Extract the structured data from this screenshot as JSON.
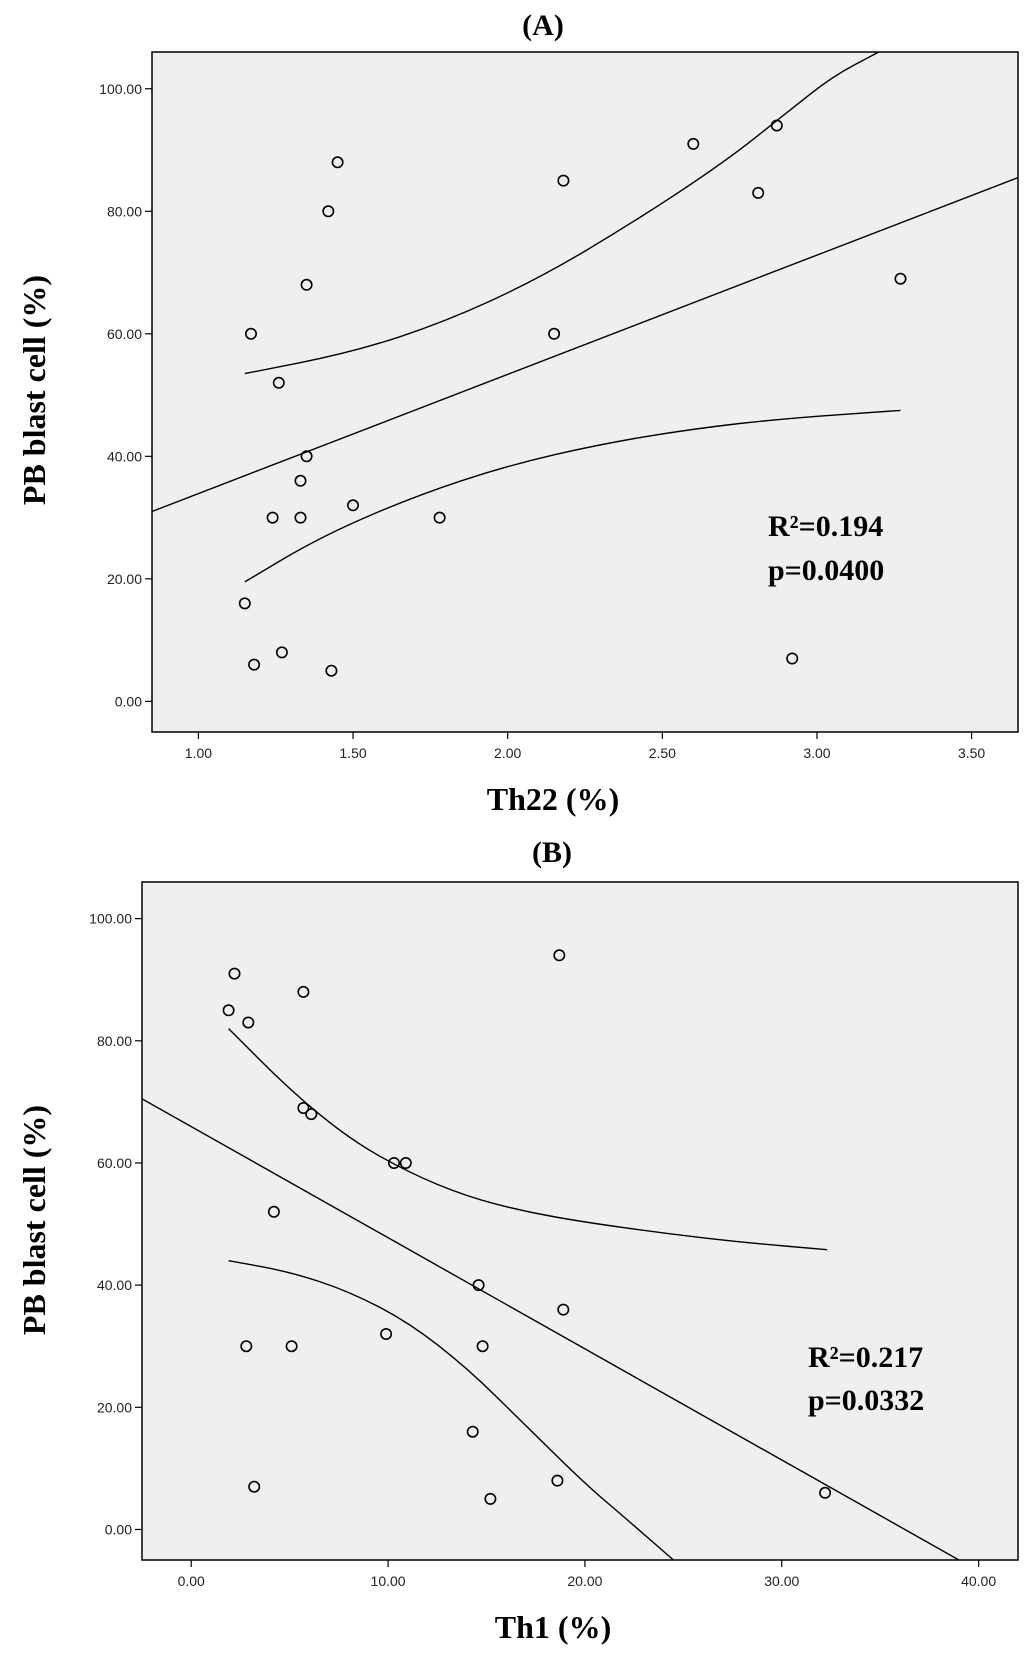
{
  "chart_data": [
    {
      "type": "scatter",
      "panel_label": "(A)",
      "xlabel": "Th22 (%)",
      "ylabel": "PB blast cell (%)",
      "xlim": [
        0.85,
        3.65
      ],
      "ylim": [
        -5,
        106
      ],
      "xticks": [
        1.0,
        1.5,
        2.0,
        2.5,
        3.0,
        3.5
      ],
      "xtick_labels": [
        "1.00",
        "1.50",
        "2.00",
        "2.50",
        "3.00",
        "3.50"
      ],
      "yticks": [
        0,
        20,
        40,
        60,
        80,
        100
      ],
      "ytick_labels": [
        "0.00",
        "20.00",
        "40.00",
        "60.00",
        "80.00",
        "100.00"
      ],
      "points": [
        [
          1.15,
          16
        ],
        [
          1.17,
          60
        ],
        [
          1.18,
          6
        ],
        [
          1.24,
          30
        ],
        [
          1.26,
          52
        ],
        [
          1.27,
          8
        ],
        [
          1.33,
          36
        ],
        [
          1.33,
          30
        ],
        [
          1.35,
          68
        ],
        [
          1.35,
          40
        ],
        [
          1.42,
          80
        ],
        [
          1.43,
          5
        ],
        [
          1.45,
          88
        ],
        [
          1.5,
          32
        ],
        [
          1.78,
          30
        ],
        [
          2.15,
          60
        ],
        [
          2.18,
          85
        ],
        [
          2.6,
          91
        ],
        [
          2.81,
          83
        ],
        [
          2.87,
          94
        ],
        [
          2.92,
          7
        ],
        [
          3.27,
          69
        ]
      ],
      "fit_line": [
        [
          0.85,
          31
        ],
        [
          3.65,
          85.5
        ]
      ],
      "ci_upper": [
        [
          1.15,
          53.5
        ],
        [
          1.5,
          57
        ],
        [
          1.8,
          62
        ],
        [
          2.1,
          69
        ],
        [
          2.4,
          78
        ],
        [
          2.7,
          88
        ],
        [
          2.9,
          96
        ],
        [
          3.05,
          102
        ],
        [
          3.2,
          106
        ]
      ],
      "ci_lower": [
        [
          1.15,
          19.5
        ],
        [
          1.4,
          27
        ],
        [
          1.7,
          33.5
        ],
        [
          2.0,
          38.5
        ],
        [
          2.3,
          42
        ],
        [
          2.6,
          44.5
        ],
        [
          2.9,
          46.2
        ],
        [
          3.27,
          47.5
        ]
      ],
      "annotation": {
        "r2": "R²=0.194",
        "p": "p=0.0400"
      }
    },
    {
      "type": "scatter",
      "panel_label": "(B)",
      "xlabel": "Th1 (%)",
      "ylabel": "PB blast cell (%)",
      "xlim": [
        -2.5,
        42
      ],
      "ylim": [
        -5,
        106
      ],
      "xticks": [
        0,
        10,
        20,
        30,
        40
      ],
      "xtick_labels": [
        "0.00",
        "10.00",
        "20.00",
        "30.00",
        "40.00"
      ],
      "yticks": [
        0,
        20,
        40,
        60,
        80,
        100
      ],
      "ytick_labels": [
        "0.00",
        "20.00",
        "40.00",
        "60.00",
        "80.00",
        "100.00"
      ],
      "points": [
        [
          1.9,
          85
        ],
        [
          2.2,
          91
        ],
        [
          2.9,
          83
        ],
        [
          2.8,
          30
        ],
        [
          3.2,
          7
        ],
        [
          4.2,
          52
        ],
        [
          5.1,
          30
        ],
        [
          5.7,
          69
        ],
        [
          5.7,
          88
        ],
        [
          6.1,
          68
        ],
        [
          9.9,
          32
        ],
        [
          10.3,
          60
        ],
        [
          10.9,
          60
        ],
        [
          14.3,
          16
        ],
        [
          14.6,
          40
        ],
        [
          14.8,
          30
        ],
        [
          15.2,
          5
        ],
        [
          18.6,
          8
        ],
        [
          18.7,
          94
        ],
        [
          18.9,
          36
        ],
        [
          32.2,
          6
        ]
      ],
      "fit_line": [
        [
          -2.5,
          70.5
        ],
        [
          39,
          -5
        ]
      ],
      "ci_upper": [
        [
          1.9,
          82
        ],
        [
          5,
          72
        ],
        [
          8,
          64
        ],
        [
          11,
          58.5
        ],
        [
          14,
          54.5
        ],
        [
          17,
          52
        ],
        [
          20,
          50.3
        ],
        [
          24,
          48.5
        ],
        [
          28,
          47
        ],
        [
          32.3,
          45.8
        ]
      ],
      "ci_lower": [
        [
          1.9,
          44
        ],
        [
          5,
          42.2
        ],
        [
          8,
          39
        ],
        [
          11,
          34
        ],
        [
          14,
          26.5
        ],
        [
          17,
          17
        ],
        [
          20,
          7.5
        ],
        [
          22,
          2
        ],
        [
          24.5,
          -5
        ]
      ],
      "annotation": {
        "r2": "R²=0.217",
        "p": "p=0.0332"
      }
    }
  ]
}
